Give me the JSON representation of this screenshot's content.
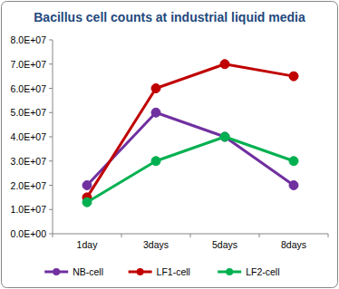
{
  "chart_data": {
    "type": "line",
    "title": "Bacillus cell counts at industrial liquid media",
    "categories": [
      "1day",
      "3days",
      "5days",
      "8days"
    ],
    "series": [
      {
        "name": "NB-cell",
        "color": "#7030a0",
        "values": [
          20000000,
          50000000,
          40000000,
          20000000
        ]
      },
      {
        "name": "LF1-cell",
        "color": "#c00000",
        "values": [
          15000000,
          60000000,
          70000000,
          65000000
        ]
      },
      {
        "name": "LF2-cell",
        "color": "#00b050",
        "values": [
          13000000,
          30000000,
          40000000,
          30000000
        ]
      }
    ],
    "ylim": [
      0,
      80000000
    ],
    "yticks": [
      {
        "value": 0,
        "label": "0.0E+00"
      },
      {
        "value": 10000000,
        "label": "1.0E+07"
      },
      {
        "value": 20000000,
        "label": "2.0E+07"
      },
      {
        "value": 30000000,
        "label": "3.0E+07"
      },
      {
        "value": 40000000,
        "label": "4.0E+07"
      },
      {
        "value": 50000000,
        "label": "5.0E+07"
      },
      {
        "value": 60000000,
        "label": "6.0E+07"
      },
      {
        "value": 70000000,
        "label": "7.0E+07"
      },
      {
        "value": 80000000,
        "label": "8.0E+07"
      }
    ],
    "grid": false,
    "legend": "bottom",
    "marker": "circle"
  }
}
